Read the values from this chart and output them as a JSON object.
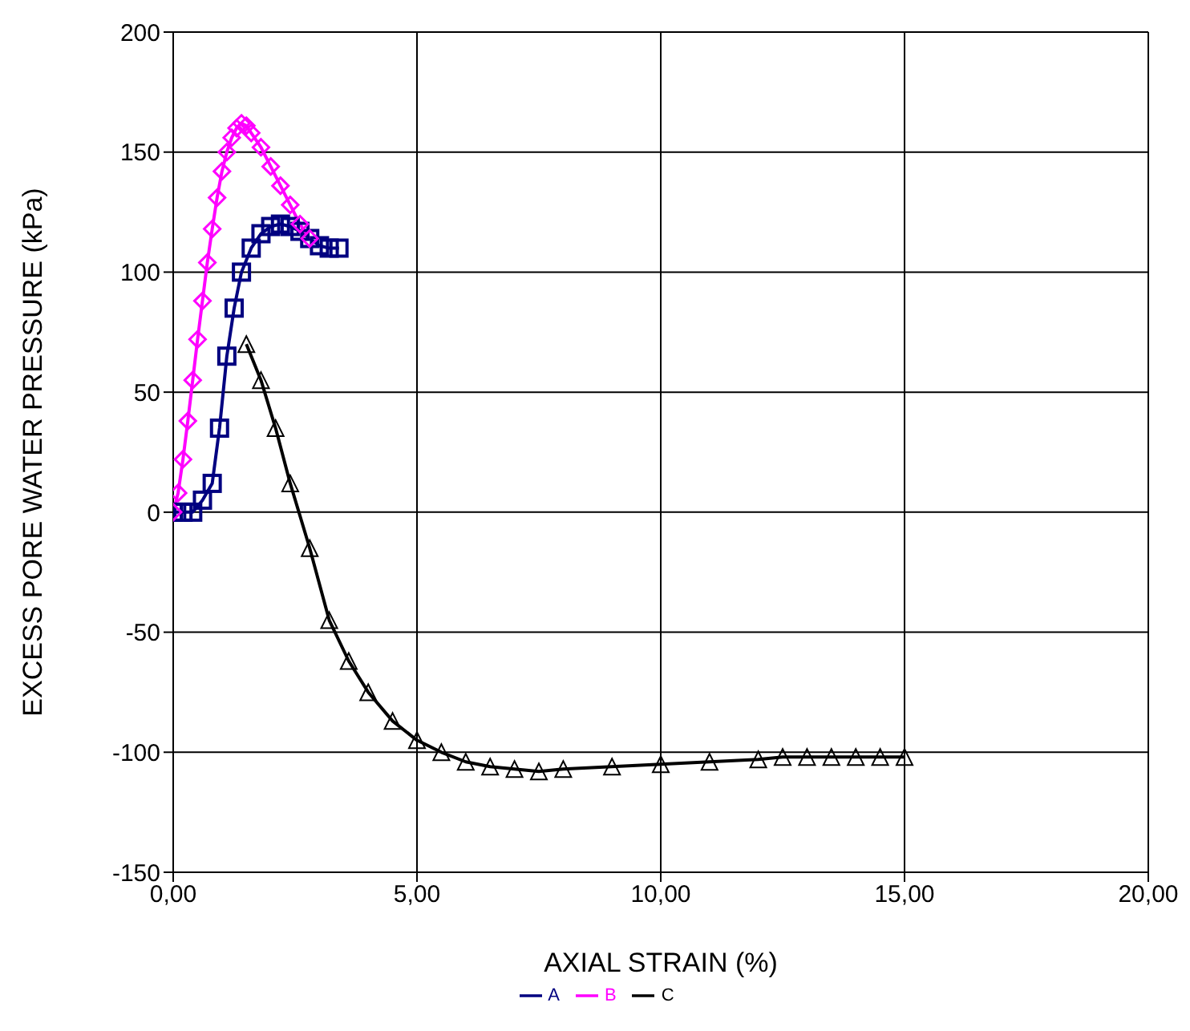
{
  "chart_data": {
    "type": "line",
    "xlabel": "AXIAL STRAIN (%)",
    "ylabel": "EXCESS PORE WATER PRESSURE (kPa)",
    "xlim": [
      0,
      20
    ],
    "xticks": [
      {
        "value": 0,
        "label": "0,00"
      },
      {
        "value": 5,
        "label": "5,00"
      },
      {
        "value": 10,
        "label": "10,00"
      },
      {
        "value": 15,
        "label": "15,00"
      },
      {
        "value": 20,
        "label": "20,00"
      }
    ],
    "ylim": [
      -150,
      200
    ],
    "yticks": [
      -150,
      -100,
      -50,
      0,
      50,
      100,
      150,
      200
    ],
    "grid": true,
    "legend": "bottom",
    "series": [
      {
        "name": "A",
        "color": "#000080",
        "marker": "square",
        "x": [
          0,
          0.2,
          0.4,
          0.6,
          0.8,
          0.95,
          1.1,
          1.25,
          1.4,
          1.6,
          1.8,
          2.0,
          2.2,
          2.4,
          2.6,
          2.8,
          3.0,
          3.2,
          3.4
        ],
        "values": [
          0,
          0,
          0,
          5,
          12,
          35,
          65,
          85,
          100,
          110,
          116,
          119,
          120,
          119,
          117,
          114,
          111,
          110,
          110
        ]
      },
      {
        "name": "B",
        "color": "#ff00ff",
        "marker": "diamond",
        "x": [
          0,
          0.1,
          0.2,
          0.3,
          0.4,
          0.5,
          0.6,
          0.7,
          0.8,
          0.9,
          1.0,
          1.1,
          1.2,
          1.3,
          1.4,
          1.5,
          1.6,
          1.8,
          2.0,
          2.2,
          2.4,
          2.6,
          2.8
        ],
        "values": [
          0,
          8,
          22,
          38,
          55,
          72,
          88,
          104,
          118,
          131,
          142,
          150,
          156,
          160,
          162,
          161,
          158,
          152,
          144,
          136,
          128,
          120,
          114
        ]
      },
      {
        "name": "C",
        "color": "#000000",
        "marker": "triangle",
        "x": [
          1.5,
          1.8,
          2.1,
          2.4,
          2.8,
          3.2,
          3.6,
          4.0,
          4.5,
          5.0,
          5.5,
          6.0,
          6.5,
          7.0,
          7.5,
          8.0,
          9.0,
          10.0,
          11.0,
          12.0,
          12.5,
          13.0,
          13.5,
          14.0,
          14.5,
          15.0
        ],
        "values": [
          70,
          55,
          35,
          12,
          -15,
          -45,
          -62,
          -75,
          -87,
          -95,
          -100,
          -104,
          -106,
          -107,
          -108,
          -107,
          -106,
          -105,
          -104,
          -103,
          -102,
          -102,
          -102,
          -102,
          -102,
          -102
        ]
      }
    ]
  }
}
